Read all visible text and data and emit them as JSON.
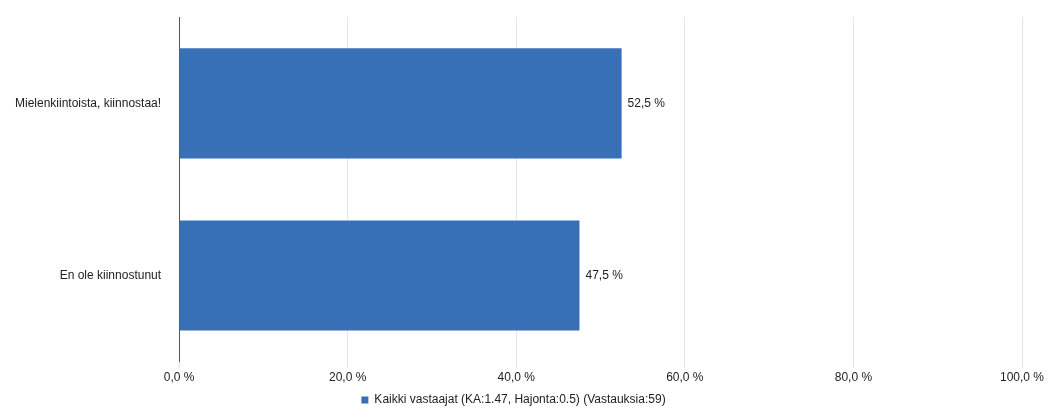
{
  "chart_data": {
    "type": "bar",
    "orientation": "horizontal",
    "categories": [
      "Mielenkiintoista, kiinnostaa!",
      "En ole kiinnostunut"
    ],
    "series": [
      {
        "name": "Kaikki vastaajat (KA:1.47, Hajonta:0.5) (Vastauksia:59)",
        "color": "#3870b8",
        "values": [
          52.5,
          47.5
        ],
        "value_labels": [
          "52,5 %",
          "47,5 %"
        ]
      }
    ],
    "xlim": [
      0,
      100
    ],
    "xticks": [
      {
        "value": 0,
        "label": "0,0 %"
      },
      {
        "value": 20,
        "label": "20,0 %"
      },
      {
        "value": 40,
        "label": "40,0 %"
      },
      {
        "value": 60,
        "label": "60,0 %"
      },
      {
        "value": 80,
        "label": "80,0 %"
      },
      {
        "value": 100,
        "label": "100,0 %"
      }
    ],
    "grid": "x",
    "legend": "bottom"
  }
}
